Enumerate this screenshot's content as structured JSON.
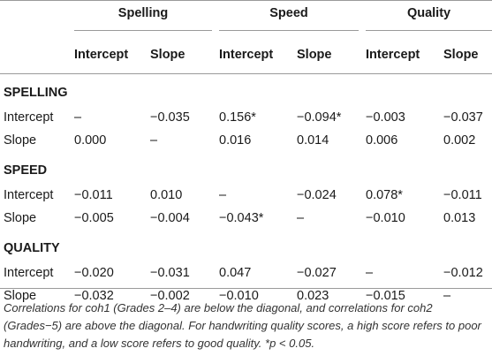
{
  "groups": [
    "Spelling",
    "Speed",
    "Quality"
  ],
  "subheaders": [
    "Intercept",
    "Slope",
    "Intercept",
    "Slope",
    "Intercept",
    "Slope"
  ],
  "sections": [
    {
      "name": "SPELLING",
      "rows": [
        {
          "label": "Intercept",
          "cells": [
            "–",
            "−0.035",
            "0.156*",
            "−0.094*",
            "−0.003",
            "−0.037"
          ]
        },
        {
          "label": "Slope",
          "cells": [
            "0.000",
            "–",
            "0.016",
            "0.014",
            "0.006",
            "0.002"
          ]
        }
      ]
    },
    {
      "name": "SPEED",
      "rows": [
        {
          "label": "Intercept",
          "cells": [
            "−0.011",
            "0.010",
            "–",
            "−0.024",
            "0.078*",
            "−0.011"
          ]
        },
        {
          "label": "Slope",
          "cells": [
            "−0.005",
            "−0.004",
            "−0.043*",
            "–",
            "−0.010",
            "0.013"
          ]
        }
      ]
    },
    {
      "name": "QUALITY",
      "rows": [
        {
          "label": "Intercept",
          "cells": [
            "−0.020",
            "−0.031",
            "0.047",
            "−0.027",
            "–",
            "−0.012"
          ]
        },
        {
          "label": "Slope",
          "cells": [
            "−0.032",
            "−0.002",
            "−0.010",
            "0.023",
            "−0.015",
            "–"
          ]
        }
      ]
    }
  ],
  "note": "Correlations for coh1 (Grades 2–4) are below the diagonal, and correlations for coh2 (Grades−5) are above the diagonal. For handwriting quality scores, a high score refers to poor handwriting, and a low score refers to good quality. *p < 0.05."
}
